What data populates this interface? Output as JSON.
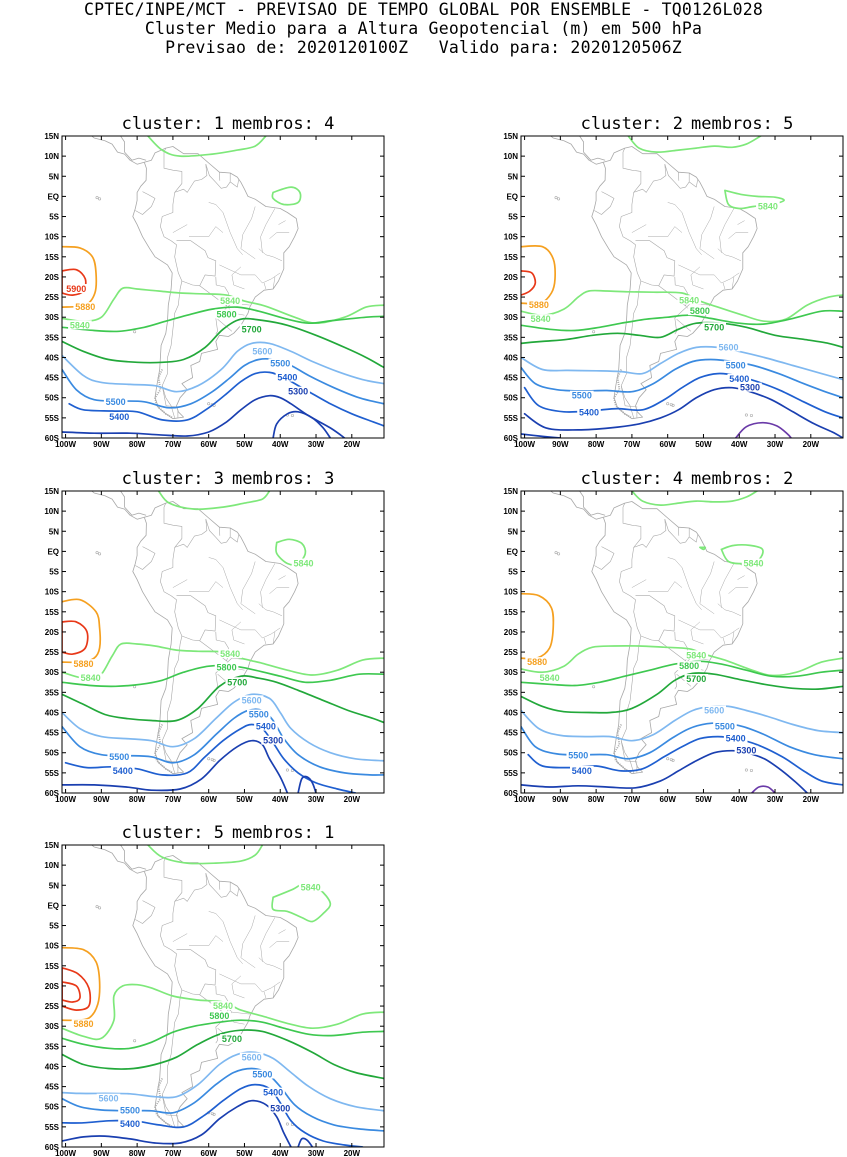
{
  "header": {
    "line1": "CPTEC/INPE/MCT - PREVISAO DE TEMPO GLOBAL POR ENSEMBLE - TQ0126L028",
    "line2": "Cluster Medio para a Altura Geopotencial (m) em 500 hPa",
    "line3": "Previsao de: 2020120100Z   Valido para: 2020120506Z"
  },
  "axes": {
    "lat_labels": [
      "15N",
      "10N",
      "5N",
      "EQ",
      "5S",
      "10S",
      "15S",
      "20S",
      "25S",
      "30S",
      "35S",
      "40S",
      "45S",
      "50S",
      "55S",
      "60S"
    ],
    "lon_labels": [
      "100W",
      "90W",
      "80W",
      "70W",
      "60W",
      "50W",
      "40W",
      "30W",
      "20W"
    ]
  },
  "colors": {
    "c5300": "#1a3fb0",
    "c5400": "#1f5fd0",
    "c5500": "#3a8ae0",
    "c5600": "#7fb8f0",
    "c5700": "#22a83a",
    "c5800": "#3ec850",
    "c5840": "#7ee87a",
    "c5880": "#f5a020",
    "c5900": "#e83818",
    "c5200": "#6a3aa8",
    "coast": "#a8a8a8"
  },
  "panels": [
    {
      "cluster_label": "cluster: 1",
      "members_label": "membros: 4",
      "labels": {
        "l5900": "5900",
        "l5880": "5880",
        "l5840a": "5840",
        "l5840b": "5840",
        "l5800": "5800",
        "l5700": "5700",
        "l5600": "5600",
        "l5500a": "5500",
        "l5500b": "5500",
        "l5400a": "5400",
        "l5400b": "5400",
        "l5300": "5300"
      }
    },
    {
      "cluster_label": "cluster: 2",
      "members_label": "membros: 5",
      "labels": {
        "l5880": "5880",
        "l5840a": "5840",
        "l5840b": "5840",
        "l5840c": "5840",
        "l5800": "5800",
        "l5700": "5700",
        "l5600": "5600",
        "l5500a": "5500",
        "l5500b": "5500",
        "l5400a": "5400",
        "l5400b": "5400",
        "l5300": "5300"
      }
    },
    {
      "cluster_label": "cluster: 3",
      "members_label": "membros: 3",
      "labels": {
        "l5880": "5880",
        "l5840a": "5840",
        "l5840b": "5840",
        "l5840c": "5840",
        "l5800": "5800",
        "l5700": "5700",
        "l5600": "5600",
        "l5500a": "5500",
        "l5500b": "5500",
        "l5400a": "5400",
        "l5400b": "5400",
        "l5300": "5300"
      }
    },
    {
      "cluster_label": "cluster: 4",
      "members_label": "membros: 2",
      "labels": {
        "l5880": "5880",
        "l5840a": "5840",
        "l5840b": "5840",
        "l5840c": "5840",
        "l5800": "5800",
        "l5700": "5700",
        "l5600": "5600",
        "l5500a": "5500",
        "l5500b": "5500",
        "l5400a": "5400",
        "l5400b": "5400",
        "l5300": "5300"
      }
    },
    {
      "cluster_label": "cluster: 5",
      "members_label": "membros: 1",
      "labels": {
        "l5880": "5880",
        "l5840a": "5840",
        "l5840b": "5840",
        "l5800": "5800",
        "l5700": "5700",
        "l5600": "5600",
        "l5600b": "5600",
        "l5500a": "5500",
        "l5500b": "5500",
        "l5400a": "5400",
        "l5400b": "5400",
        "l5300": "5300"
      }
    }
  ]
}
